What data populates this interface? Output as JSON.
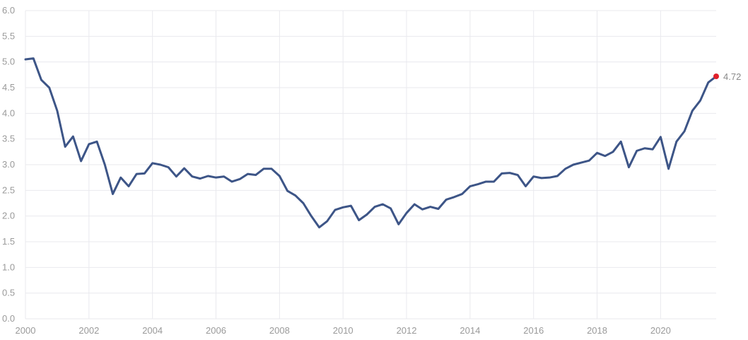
{
  "chart_data": {
    "type": "line",
    "title": "",
    "xlabel": "",
    "ylabel": "",
    "xlim": [
      2000,
      2021.75
    ],
    "ylim": [
      0,
      6
    ],
    "grid": true,
    "x_ticks": [
      "2000",
      "2002",
      "2004",
      "2006",
      "2008",
      "2010",
      "2012",
      "2014",
      "2016",
      "2018",
      "2020"
    ],
    "y_ticks": [
      "0.0",
      "0.5",
      "1.0",
      "1.5",
      "2.0",
      "2.5",
      "3.0",
      "3.5",
      "4.0",
      "4.5",
      "5.0",
      "5.5",
      "6.0"
    ],
    "last_value_label": "4.72",
    "colors": {
      "line": "#3d5587",
      "last_point": "#e0202a",
      "grid": "#e9e9ee"
    },
    "series": [
      {
        "x": [
          2000.0,
          2000.25,
          2000.5,
          2000.75,
          2001.0,
          2001.25,
          2001.5,
          2001.75,
          2002.0,
          2002.25,
          2002.5,
          2002.75,
          2003.0,
          2003.25,
          2003.5,
          2003.75,
          2004.0,
          2004.25,
          2004.5,
          2004.75,
          2005.0,
          2005.25,
          2005.5,
          2005.75,
          2006.0,
          2006.25,
          2006.5,
          2006.75,
          2007.0,
          2007.25,
          2007.5,
          2007.75,
          2008.0,
          2008.25,
          2008.5,
          2008.75,
          2009.0,
          2009.25,
          2009.5,
          2009.75,
          2010.0,
          2010.25,
          2010.5,
          2010.75,
          2011.0,
          2011.25,
          2011.5,
          2011.75,
          2012.0,
          2012.25,
          2012.5,
          2012.75,
          2013.0,
          2013.25,
          2013.5,
          2013.75,
          2014.0,
          2014.25,
          2014.5,
          2014.75,
          2015.0,
          2015.25,
          2015.5,
          2015.75,
          2016.0,
          2016.25,
          2016.5,
          2016.75,
          2017.0,
          2017.25,
          2017.5,
          2017.75,
          2018.0,
          2018.25,
          2018.5,
          2018.75,
          2019.0,
          2019.25,
          2019.5,
          2019.75,
          2020.0,
          2020.25,
          2020.5,
          2020.75,
          2021.0,
          2021.25,
          2021.5,
          2021.75
        ],
        "values": [
          5.05,
          5.07,
          4.65,
          4.5,
          4.05,
          3.35,
          3.55,
          3.07,
          3.4,
          3.45,
          3.0,
          2.43,
          2.75,
          2.58,
          2.82,
          2.83,
          3.03,
          3.0,
          2.95,
          2.77,
          2.93,
          2.77,
          2.73,
          2.78,
          2.75,
          2.77,
          2.67,
          2.72,
          2.82,
          2.8,
          2.92,
          2.92,
          2.78,
          2.49,
          2.4,
          2.25,
          2.0,
          1.78,
          1.9,
          2.12,
          2.17,
          2.2,
          1.92,
          2.03,
          2.18,
          2.23,
          2.15,
          1.84,
          2.06,
          2.23,
          2.13,
          2.18,
          2.14,
          2.32,
          2.37,
          2.43,
          2.58,
          2.62,
          2.67,
          2.67,
          2.83,
          2.84,
          2.8,
          2.58,
          2.77,
          2.74,
          2.75,
          2.78,
          2.92,
          3.0,
          3.04,
          3.08,
          3.23,
          3.17,
          3.25,
          3.45,
          2.95,
          3.27,
          3.32,
          3.3,
          3.54,
          2.92,
          3.45,
          3.65,
          4.05,
          4.25,
          4.6,
          4.72
        ]
      }
    ]
  }
}
